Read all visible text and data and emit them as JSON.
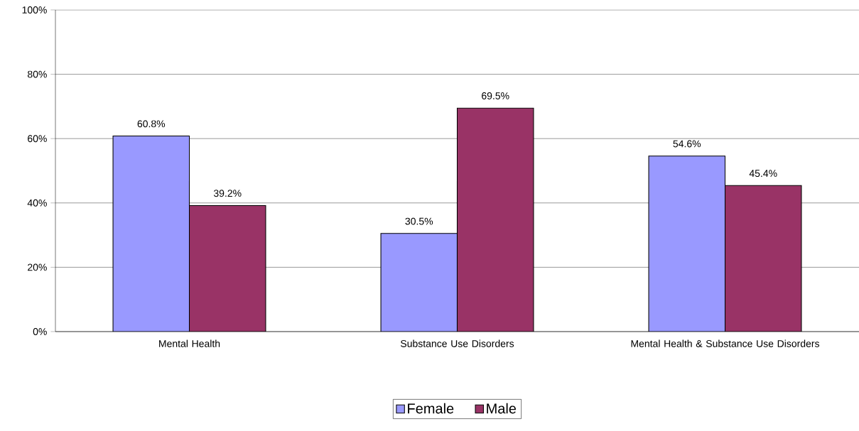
{
  "chart_data": {
    "type": "bar",
    "categories": [
      "Mental Health",
      "Substance Use Disorders",
      "Mental Health & Substance Use Disorders"
    ],
    "series": [
      {
        "name": "Female",
        "color": "#9999ff",
        "values": [
          60.8,
          30.5,
          54.6
        ],
        "value_labels": [
          "60.8%",
          "30.5%",
          "54.6%"
        ]
      },
      {
        "name": "Male",
        "color": "#993366",
        "values": [
          39.2,
          69.5,
          45.4
        ],
        "value_labels": [
          "39.2%",
          "69.5%",
          "45.4%"
        ]
      }
    ],
    "ylim": [
      0,
      100
    ],
    "yticks": [
      {
        "value": 0,
        "label": "0%"
      },
      {
        "value": 20,
        "label": "20%"
      },
      {
        "value": 40,
        "label": "40%"
      },
      {
        "value": 60,
        "label": "60%"
      },
      {
        "value": 80,
        "label": "80%"
      },
      {
        "value": 100,
        "label": "100%"
      }
    ],
    "grid": "y",
    "legend": "bottom"
  }
}
